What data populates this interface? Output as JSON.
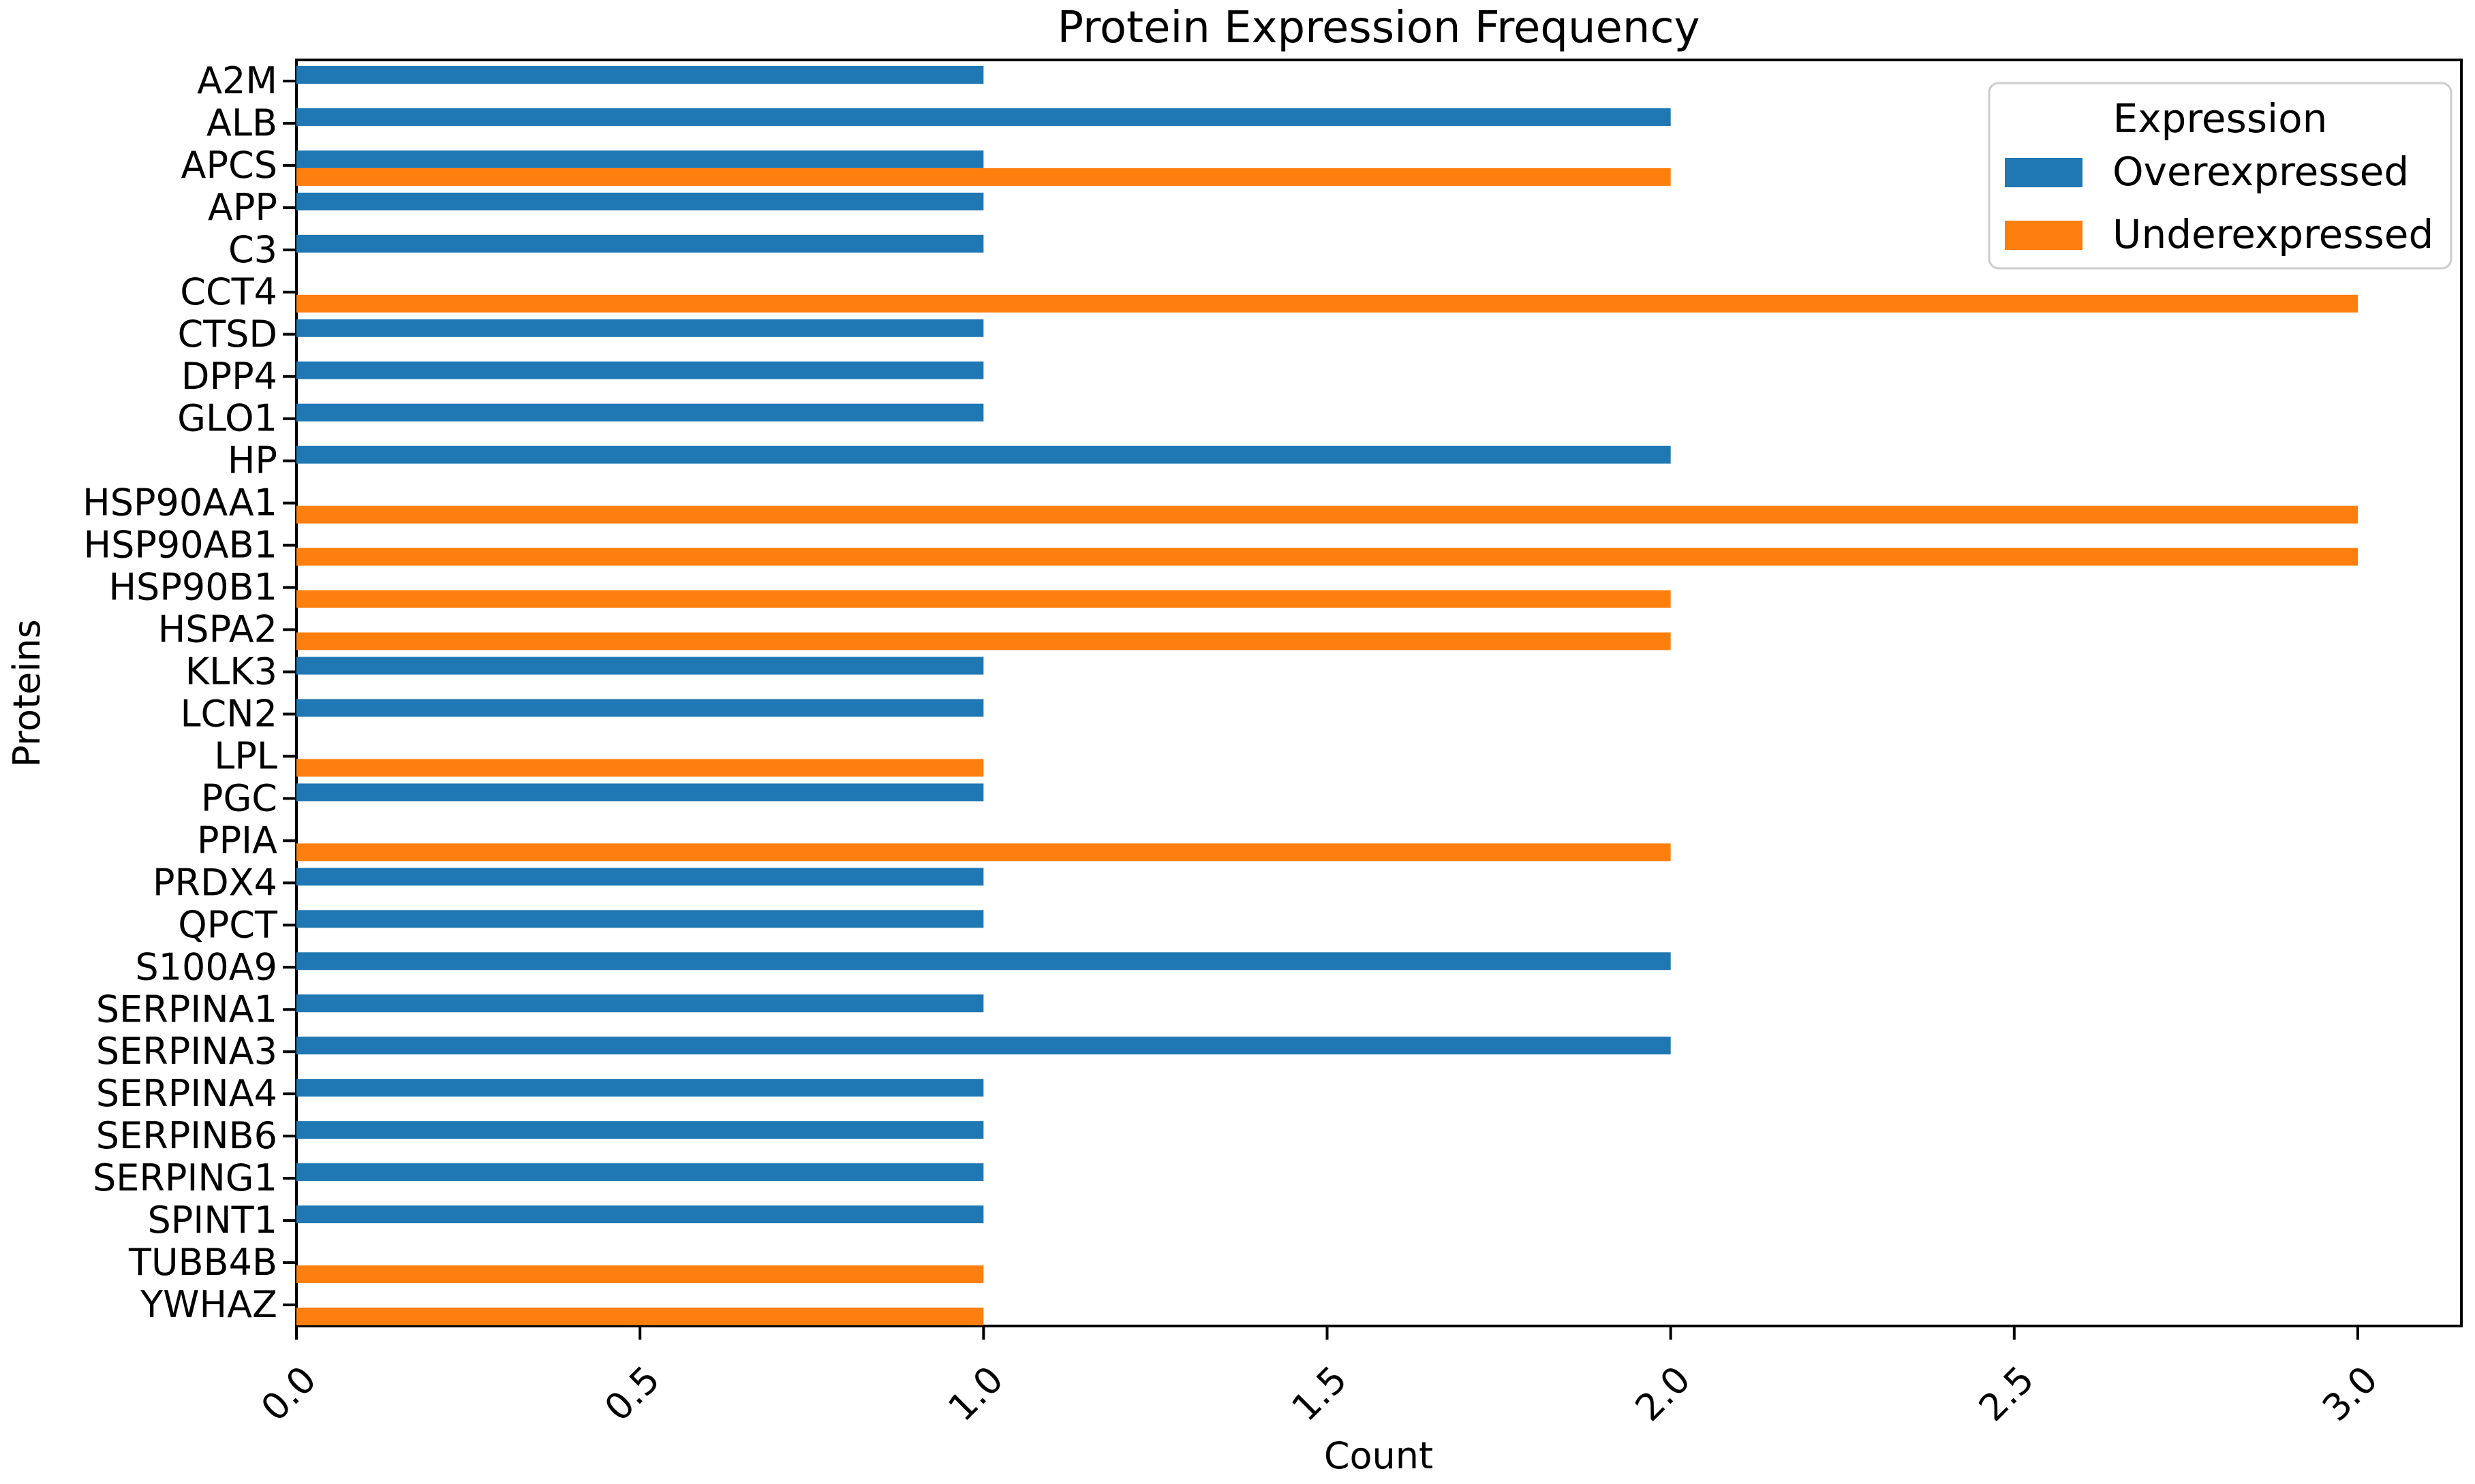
{
  "figure": {
    "title": "Protein Expression Frequency",
    "xlabel": "Count",
    "ylabel": "Proteins",
    "background_color": "#ffffff",
    "spine_color": "#000000"
  },
  "legend": {
    "title": "Expression",
    "entries": [
      {
        "label": "Overexpressed",
        "color": "#1f77b4",
        "swatch": "blue-legend-swatch"
      },
      {
        "label": "Underexpressed",
        "color": "#ff7f0e",
        "swatch": "orange-legend-swatch"
      }
    ],
    "border_color": "#cccccc",
    "background_color": "#ffffff",
    "position": "upper right"
  },
  "chart_data": {
    "type": "bar",
    "orientation": "horizontal",
    "title": "Protein Expression Frequency",
    "xlabel": "Count",
    "ylabel": "Proteins",
    "grid": false,
    "xlim": [
      0,
      3.15
    ],
    "xticks": [
      0.0,
      0.5,
      1.0,
      1.5,
      2.0,
      2.5,
      3.0
    ],
    "xtick_label_rotation_deg": 45,
    "legend_position": "upper right",
    "categories": [
      "A2M",
      "ALB",
      "APCS",
      "APP",
      "C3",
      "CCT4",
      "CTSD",
      "DPP4",
      "GLO1",
      "HP",
      "HSP90AA1",
      "HSP90AB1",
      "HSP90B1",
      "HSPA2",
      "KLK3",
      "LCN2",
      "LPL",
      "PGC",
      "PPIA",
      "PRDX4",
      "QPCT",
      "S100A9",
      "SERPINA1",
      "SERPINA3",
      "SERPINA4",
      "SERPINB6",
      "SERPING1",
      "SPINT1",
      "TUBB4B",
      "YWHAZ"
    ],
    "series": [
      {
        "name": "Overexpressed",
        "color": "#1f77b4",
        "values": [
          1,
          2,
          1,
          1,
          1,
          0,
          1,
          1,
          1,
          2,
          0,
          0,
          0,
          0,
          1,
          1,
          0,
          1,
          0,
          1,
          1,
          2,
          1,
          2,
          1,
          1,
          1,
          1,
          0,
          0
        ]
      },
      {
        "name": "Underexpressed",
        "color": "#ff7f0e",
        "values": [
          0,
          0,
          2,
          0,
          0,
          3,
          0,
          0,
          0,
          0,
          3,
          3,
          2,
          2,
          0,
          0,
          1,
          0,
          2,
          0,
          0,
          0,
          0,
          0,
          0,
          0,
          0,
          0,
          1,
          1
        ]
      }
    ]
  }
}
